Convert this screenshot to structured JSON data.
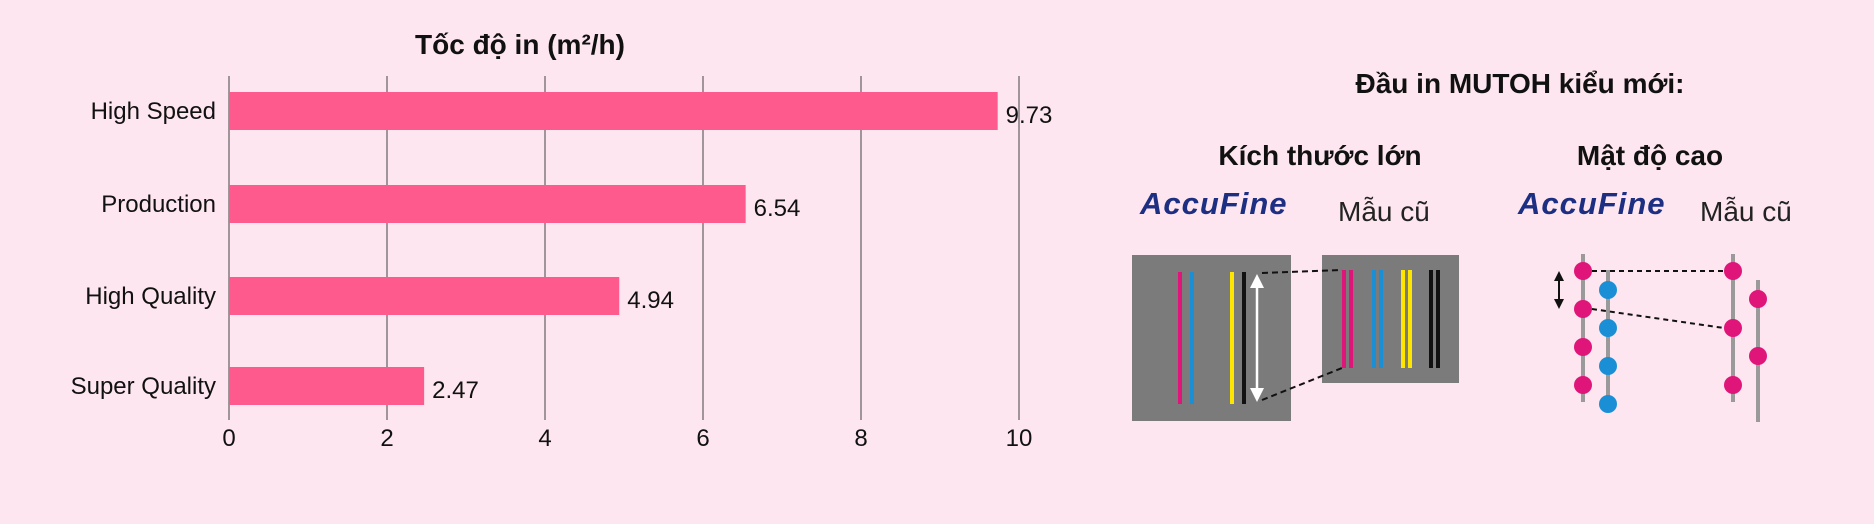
{
  "chart_data": {
    "type": "bar",
    "orientation": "horizontal",
    "title": "Tốc độ in (m²/h)",
    "categories": [
      "High Speed",
      "Production",
      "High Quality",
      "Super Quality"
    ],
    "values": [
      9.73,
      6.54,
      4.94,
      2.47
    ],
    "value_labels": [
      "9.73",
      "6.54",
      "4.94",
      "2.47"
    ],
    "xlim": [
      0,
      10
    ],
    "x_ticks": [
      "0",
      "2",
      "4",
      "6",
      "8",
      "10"
    ],
    "grid": "vertical",
    "bar_color": "#ff5a8e"
  },
  "diagram": {
    "title": "Đầu in MUTOH kiểu mới:",
    "panels": [
      {
        "title": "Kích thước lớn",
        "brand": "AccuFine",
        "old_label": "Mẫu cũ"
      },
      {
        "title": "Mật độ cao",
        "brand": "AccuFine",
        "old_label": "Mẫu cũ"
      }
    ],
    "colors": {
      "magenta": "#e0157a",
      "cyan": "#1b8fd6",
      "yellow": "#ffe600",
      "black": "#111111",
      "box": "#7b7b7b",
      "brand": "#1c2f82"
    }
  }
}
